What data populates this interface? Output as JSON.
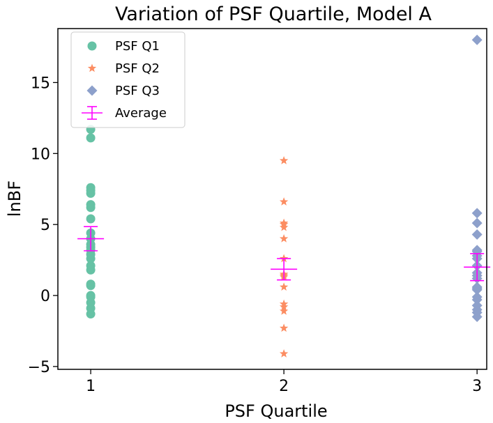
{
  "chart_data": {
    "type": "scatter",
    "title": "Variation of PSF Quartile, Model A",
    "xlabel": "PSF Quartile",
    "ylabel": "lnBF",
    "xlim": [
      0.83,
      3.05
    ],
    "ylim": [
      -5.2,
      18.8
    ],
    "xticks": [
      1,
      2,
      3
    ],
    "yticks": [
      -5,
      0,
      5,
      10,
      15
    ],
    "legend_position": "top-left",
    "series": [
      {
        "name": "PSF Q1",
        "marker": "circle",
        "color": "#66c2a5",
        "x": [
          1,
          1,
          1,
          1,
          1,
          1,
          1,
          1,
          1,
          1,
          1,
          1,
          1,
          1,
          1,
          1,
          1,
          1,
          1,
          1,
          1,
          1,
          1,
          1
        ],
        "y": [
          11.7,
          11.1,
          7.6,
          7.4,
          7.2,
          6.4,
          6.2,
          5.4,
          4.0,
          3.6,
          3.2,
          2.6,
          2.1,
          0.8,
          0.7,
          0.0,
          -0.1,
          -0.5,
          -0.9,
          -1.3,
          4.4,
          3.4,
          2.9,
          1.8
        ]
      },
      {
        "name": "PSF Q2",
        "marker": "star",
        "color": "#fc8d62",
        "x": [
          2,
          2,
          2,
          2,
          2,
          2,
          2,
          2,
          2,
          2,
          2,
          2,
          2,
          2,
          2,
          2
        ],
        "y": [
          9.5,
          6.6,
          5.1,
          5.0,
          4.8,
          4.0,
          2.6,
          1.5,
          1.4,
          1.3,
          0.6,
          -0.6,
          -0.8,
          -1.1,
          -2.3,
          -4.1
        ]
      },
      {
        "name": "PSF Q3",
        "marker": "diamond",
        "color": "#8da0cb",
        "x": [
          3,
          3,
          3,
          3,
          3,
          3,
          3,
          3,
          3,
          3,
          3,
          3,
          3,
          3,
          3,
          3,
          3,
          3,
          3,
          3,
          3
        ],
        "y": [
          18.0,
          5.8,
          5.1,
          4.3,
          3.2,
          3.1,
          2.8,
          2.6,
          2.1,
          1.6,
          1.4,
          1.2,
          0.6,
          0.5,
          0.4,
          -0.1,
          -0.3,
          -0.7,
          -1.0,
          -1.2,
          -1.5
        ]
      },
      {
        "name": "Average",
        "marker": "errorbar",
        "color": "#ff00ff",
        "x": [
          1,
          2,
          3
        ],
        "y": [
          4.0,
          1.85,
          2.0
        ],
        "yerr": [
          0.85,
          0.75,
          0.95
        ]
      }
    ]
  }
}
